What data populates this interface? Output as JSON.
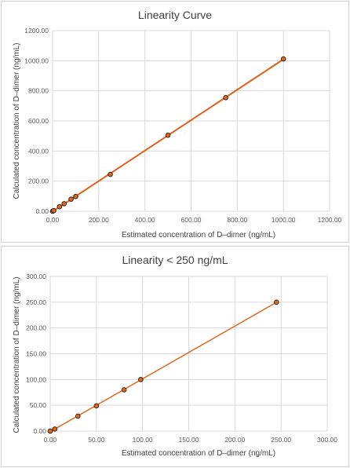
{
  "chart_data": [
    {
      "type": "scatter",
      "title": "Linearity Curve",
      "xlabel": "Estimated concentration of D–dimer (ng/mL)",
      "ylabel": "Calculated concentration of D–dimer (ng/mL)",
      "xlim": [
        0,
        1200
      ],
      "ylim": [
        0,
        1200
      ],
      "x_ticks": [
        "0.00",
        "200.00",
        "400.00",
        "600.00",
        "800.00",
        "1000.00",
        "1200.00"
      ],
      "y_ticks": [
        "0.00",
        "200.00",
        "400.00",
        "600.00",
        "800.00",
        "1000.00",
        "1200.00"
      ],
      "x_tick_values": [
        0,
        200,
        400,
        600,
        800,
        1000,
        1200
      ],
      "y_tick_values": [
        0,
        200,
        400,
        600,
        800,
        1000,
        1200
      ],
      "grid": true,
      "trendline": true,
      "series": [
        {
          "x": [
            0,
            5,
            30,
            50,
            80,
            100,
            250,
            500,
            750,
            1000
          ],
          "y": [
            0,
            4,
            30,
            50,
            80,
            98,
            245,
            505,
            755,
            1012
          ]
        }
      ],
      "colors": {
        "series": "#e0601a",
        "grid": "#d9d9d9"
      }
    },
    {
      "type": "scatter",
      "title": "Linearity < 250 ng/mL",
      "xlabel": "Estimated concentration of D–dimer (ng/mL)",
      "ylabel": "Calculated concentration of D–dimer (ng/mL)",
      "xlim": [
        0,
        300
      ],
      "ylim": [
        0,
        300
      ],
      "x_ticks": [
        "0.00",
        "50.00",
        "100.00",
        "150.00",
        "200.00",
        "250.00",
        "300.00"
      ],
      "y_ticks": [
        "0.00",
        "50.00",
        "100.00",
        "150.00",
        "200.00",
        "250.00",
        "300.00"
      ],
      "x_tick_values": [
        0,
        50,
        100,
        150,
        200,
        250,
        300
      ],
      "y_tick_values": [
        0,
        50,
        100,
        150,
        200,
        250,
        300
      ],
      "grid": true,
      "trendline": true,
      "series": [
        {
          "x": [
            0,
            5,
            30,
            50,
            80,
            98,
            245
          ],
          "y": [
            0,
            4,
            29,
            49,
            80,
            100,
            250
          ]
        }
      ],
      "colors": {
        "series": "#e0601a",
        "grid": "#d9d9d9"
      }
    }
  ]
}
